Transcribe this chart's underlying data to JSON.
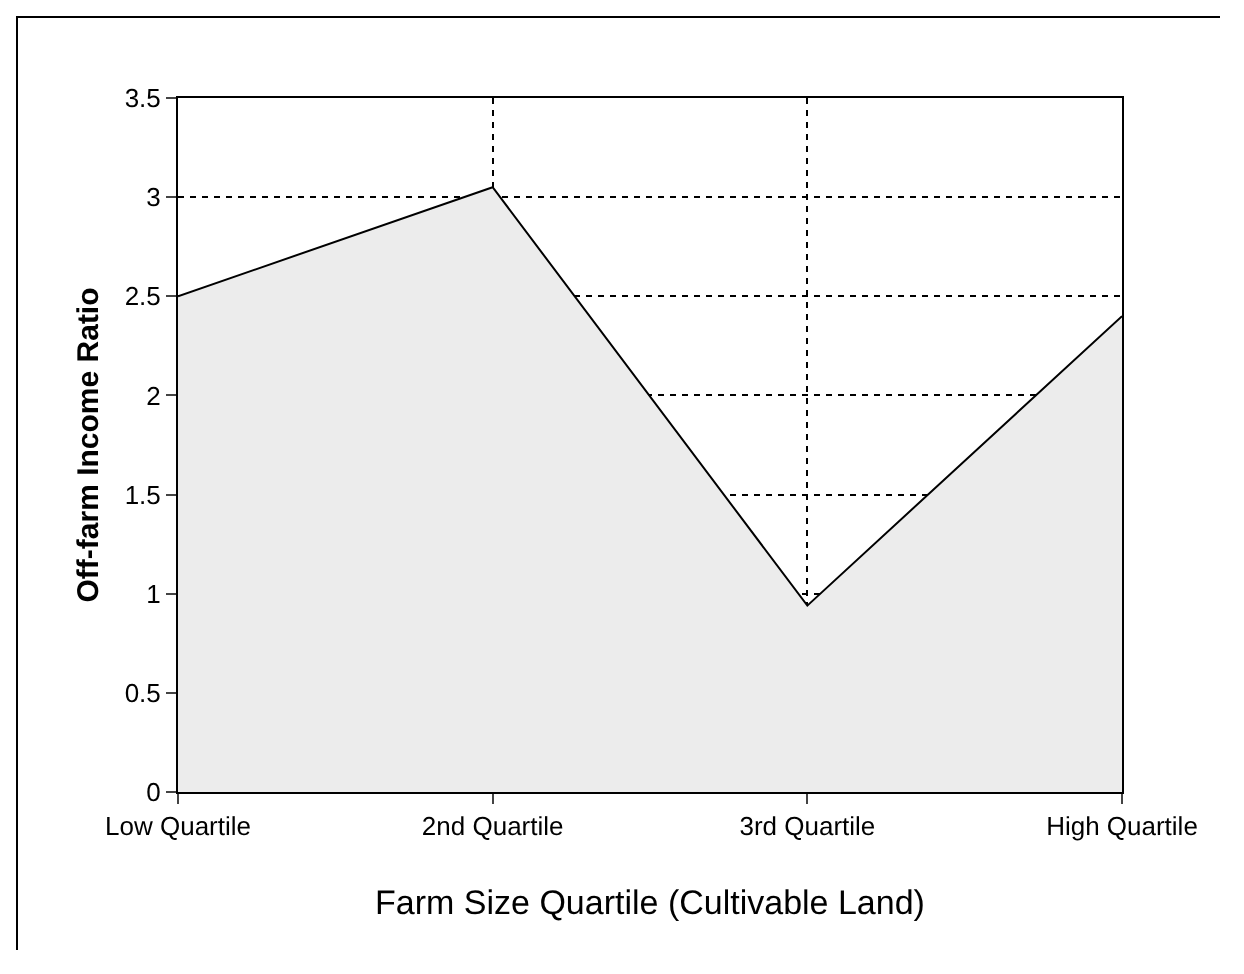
{
  "chart_data": {
    "type": "area",
    "xlabel": "Farm Size Quartile (Cultivable Land)",
    "ylabel": "Off-farm Income Ratio",
    "categories": [
      "Low Quartile",
      "2nd Quartile",
      "3rd Quartile",
      "High Quartile"
    ],
    "values": [
      2.5,
      3.05,
      0.94,
      2.4
    ],
    "color": "#ececec",
    "ylim": [
      0,
      3.5
    ],
    "yticks": [
      0,
      0.5,
      1,
      1.5,
      2,
      2.5,
      3,
      3.5
    ],
    "grid": true,
    "line_style": "dotted"
  }
}
